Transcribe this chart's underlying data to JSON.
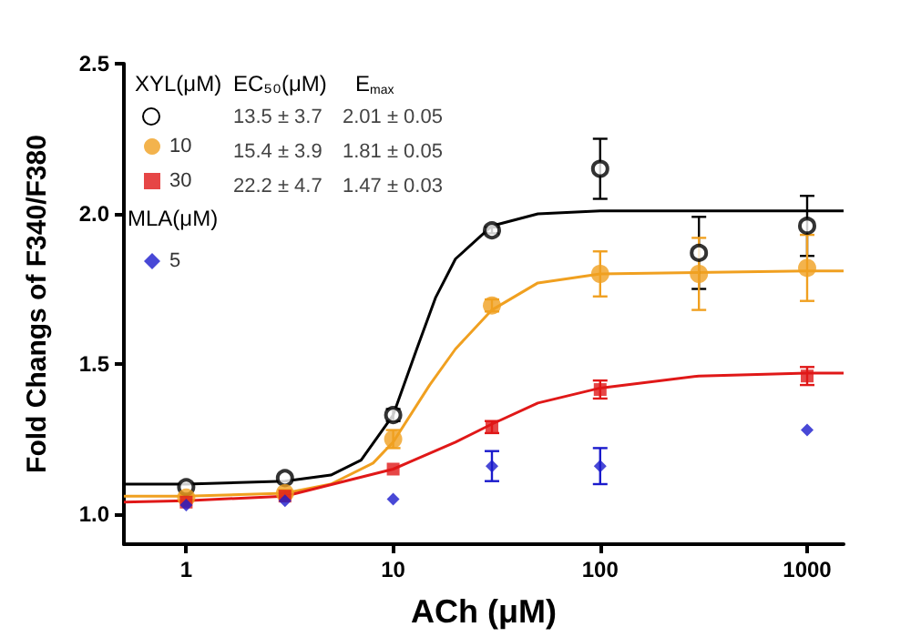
{
  "chart_data": {
    "type": "scatter",
    "xlabel": "ACh (μM)",
    "ylabel": "Fold Changs of F340/F380",
    "log": "x",
    "grid": false,
    "legend": "top left",
    "xlim": [
      0.5,
      1500
    ],
    "xticks": [
      1,
      10,
      100,
      1000
    ],
    "ylim": [
      0.9,
      2.5
    ],
    "yticks": [
      {
        "value": 1,
        "label": "1.0"
      },
      {
        "value": 1.5,
        "label": "1.5"
      },
      {
        "value": 2,
        "label": "2.0"
      },
      {
        "value": 2.5,
        "label": "2.5"
      }
    ],
    "annotations": [
      "XYL(μM)",
      "EC₅₀(μM)",
      "E$_{max}$",
      "13.5 ± 3.7",
      "2.01 ± 0.05",
      "15.4 ± 3.9",
      "1.81 ± 0.05",
      "22.2 ± 4.7",
      "1.47 ± 0.03",
      "MLA(μM)"
    ],
    "series": [
      {
        "type": "line",
        "color": "#000000",
        "marker": "none",
        "x": [
          0.5,
          1,
          3,
          5,
          7,
          10,
          13,
          16,
          20,
          30,
          50,
          100,
          1000,
          1500
        ],
        "values": [
          1.1,
          1.1,
          1.11,
          1.13,
          1.18,
          1.33,
          1.55,
          1.72,
          1.85,
          1.96,
          2.0,
          2.01,
          2.01,
          2.01
        ]
      },
      {
        "type": "line",
        "color": "#f0a020",
        "marker": "none",
        "x": [
          0.5,
          1,
          3,
          5,
          8,
          10,
          15,
          20,
          30,
          50,
          100,
          1000,
          1500
        ],
        "values": [
          1.06,
          1.06,
          1.07,
          1.1,
          1.17,
          1.24,
          1.43,
          1.55,
          1.68,
          1.77,
          1.8,
          1.81,
          1.81
        ]
      },
      {
        "type": "line",
        "color": "#e01818",
        "marker": "none",
        "x": [
          0.5,
          1,
          3,
          10,
          20,
          30,
          50,
          100,
          300,
          1000,
          1500
        ],
        "values": [
          1.04,
          1.045,
          1.06,
          1.15,
          1.24,
          1.3,
          1.37,
          1.42,
          1.46,
          1.47,
          1.47
        ]
      },
      {
        "color": "#000000",
        "marker": "open circle",
        "x": [
          1,
          3,
          10,
          30,
          100,
          300,
          1000
        ],
        "values": [
          1.09,
          1.12,
          1.33,
          1.945,
          2.15,
          1.87,
          1.96
        ],
        "errors": [
          null,
          null,
          0.02,
          0.01,
          0.1,
          0.12,
          0.1
        ]
      },
      {
        "name": "10",
        "color": "#f0a020",
        "marker": "circle",
        "x": [
          1,
          3,
          10,
          30,
          100,
          300,
          1000
        ],
        "values": [
          1.055,
          1.07,
          1.25,
          1.695,
          1.8,
          1.8,
          1.82
        ],
        "errors": [
          0.01,
          0.01,
          0.03,
          0.02,
          0.075,
          0.12,
          0.11
        ]
      },
      {
        "name": "30",
        "color": "#e01818",
        "marker": "square",
        "x": [
          1,
          3,
          10,
          30,
          100,
          1000
        ],
        "values": [
          1.04,
          1.06,
          1.15,
          1.29,
          1.415,
          1.46
        ],
        "errors": [
          null,
          null,
          null,
          0.02,
          0.03,
          0.03
        ]
      },
      {
        "name": "5",
        "color": "#1a1acc",
        "marker": "diamond",
        "x": [
          1,
          3,
          10,
          30,
          100,
          1000
        ],
        "values": [
          1.03,
          1.045,
          1.05,
          1.16,
          1.16,
          1.28
        ],
        "errors": [
          null,
          null,
          null,
          0.05,
          0.06,
          null
        ]
      }
    ]
  }
}
